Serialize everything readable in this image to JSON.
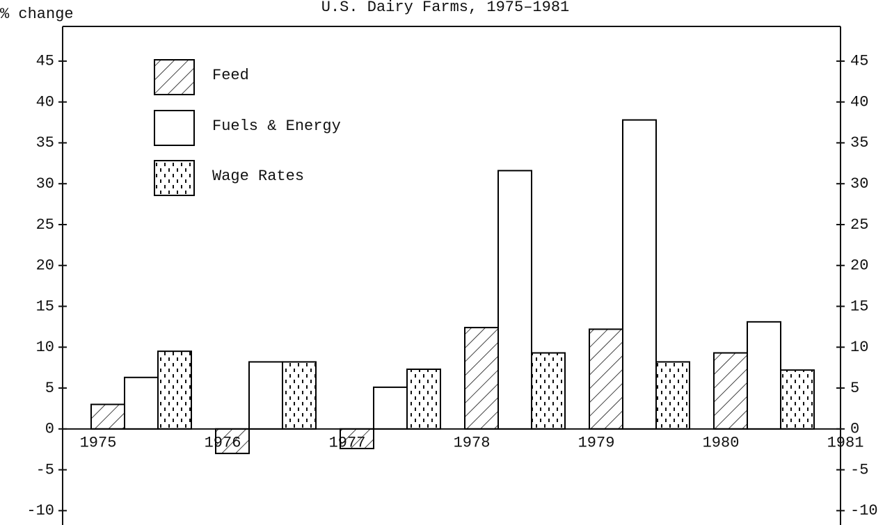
{
  "chart_data": {
    "type": "bar",
    "title": "U.S. Dairy Farms, 1975–1981",
    "y_label": "% change",
    "categories": [
      "1975",
      "1976",
      "1977",
      "1978",
      "1979",
      "1980",
      "1981"
    ],
    "series": [
      {
        "name": "Feed",
        "color": "#000000",
        "pattern": "hatch",
        "values": [
          3,
          -3,
          -2.4,
          12.4,
          12.2,
          9.3,
          null
        ]
      },
      {
        "name": "Fuels & Energy",
        "color": "#000000",
        "pattern": "none",
        "values": [
          6.3,
          8.2,
          5.1,
          31.6,
          37.8,
          13.1,
          null
        ]
      },
      {
        "name": "Wage Rates",
        "color": "#000000",
        "pattern": "dashes",
        "values": [
          9.5,
          8.2,
          7.3,
          9.3,
          8.2,
          7.2,
          null
        ]
      }
    ],
    "ylim": [
      -11.5,
      49.5
    ],
    "yticks": [
      -10,
      -5,
      0,
      5,
      10,
      15,
      20,
      25,
      30,
      35,
      40,
      45
    ],
    "right_axis_labels": true,
    "grid": false
  }
}
